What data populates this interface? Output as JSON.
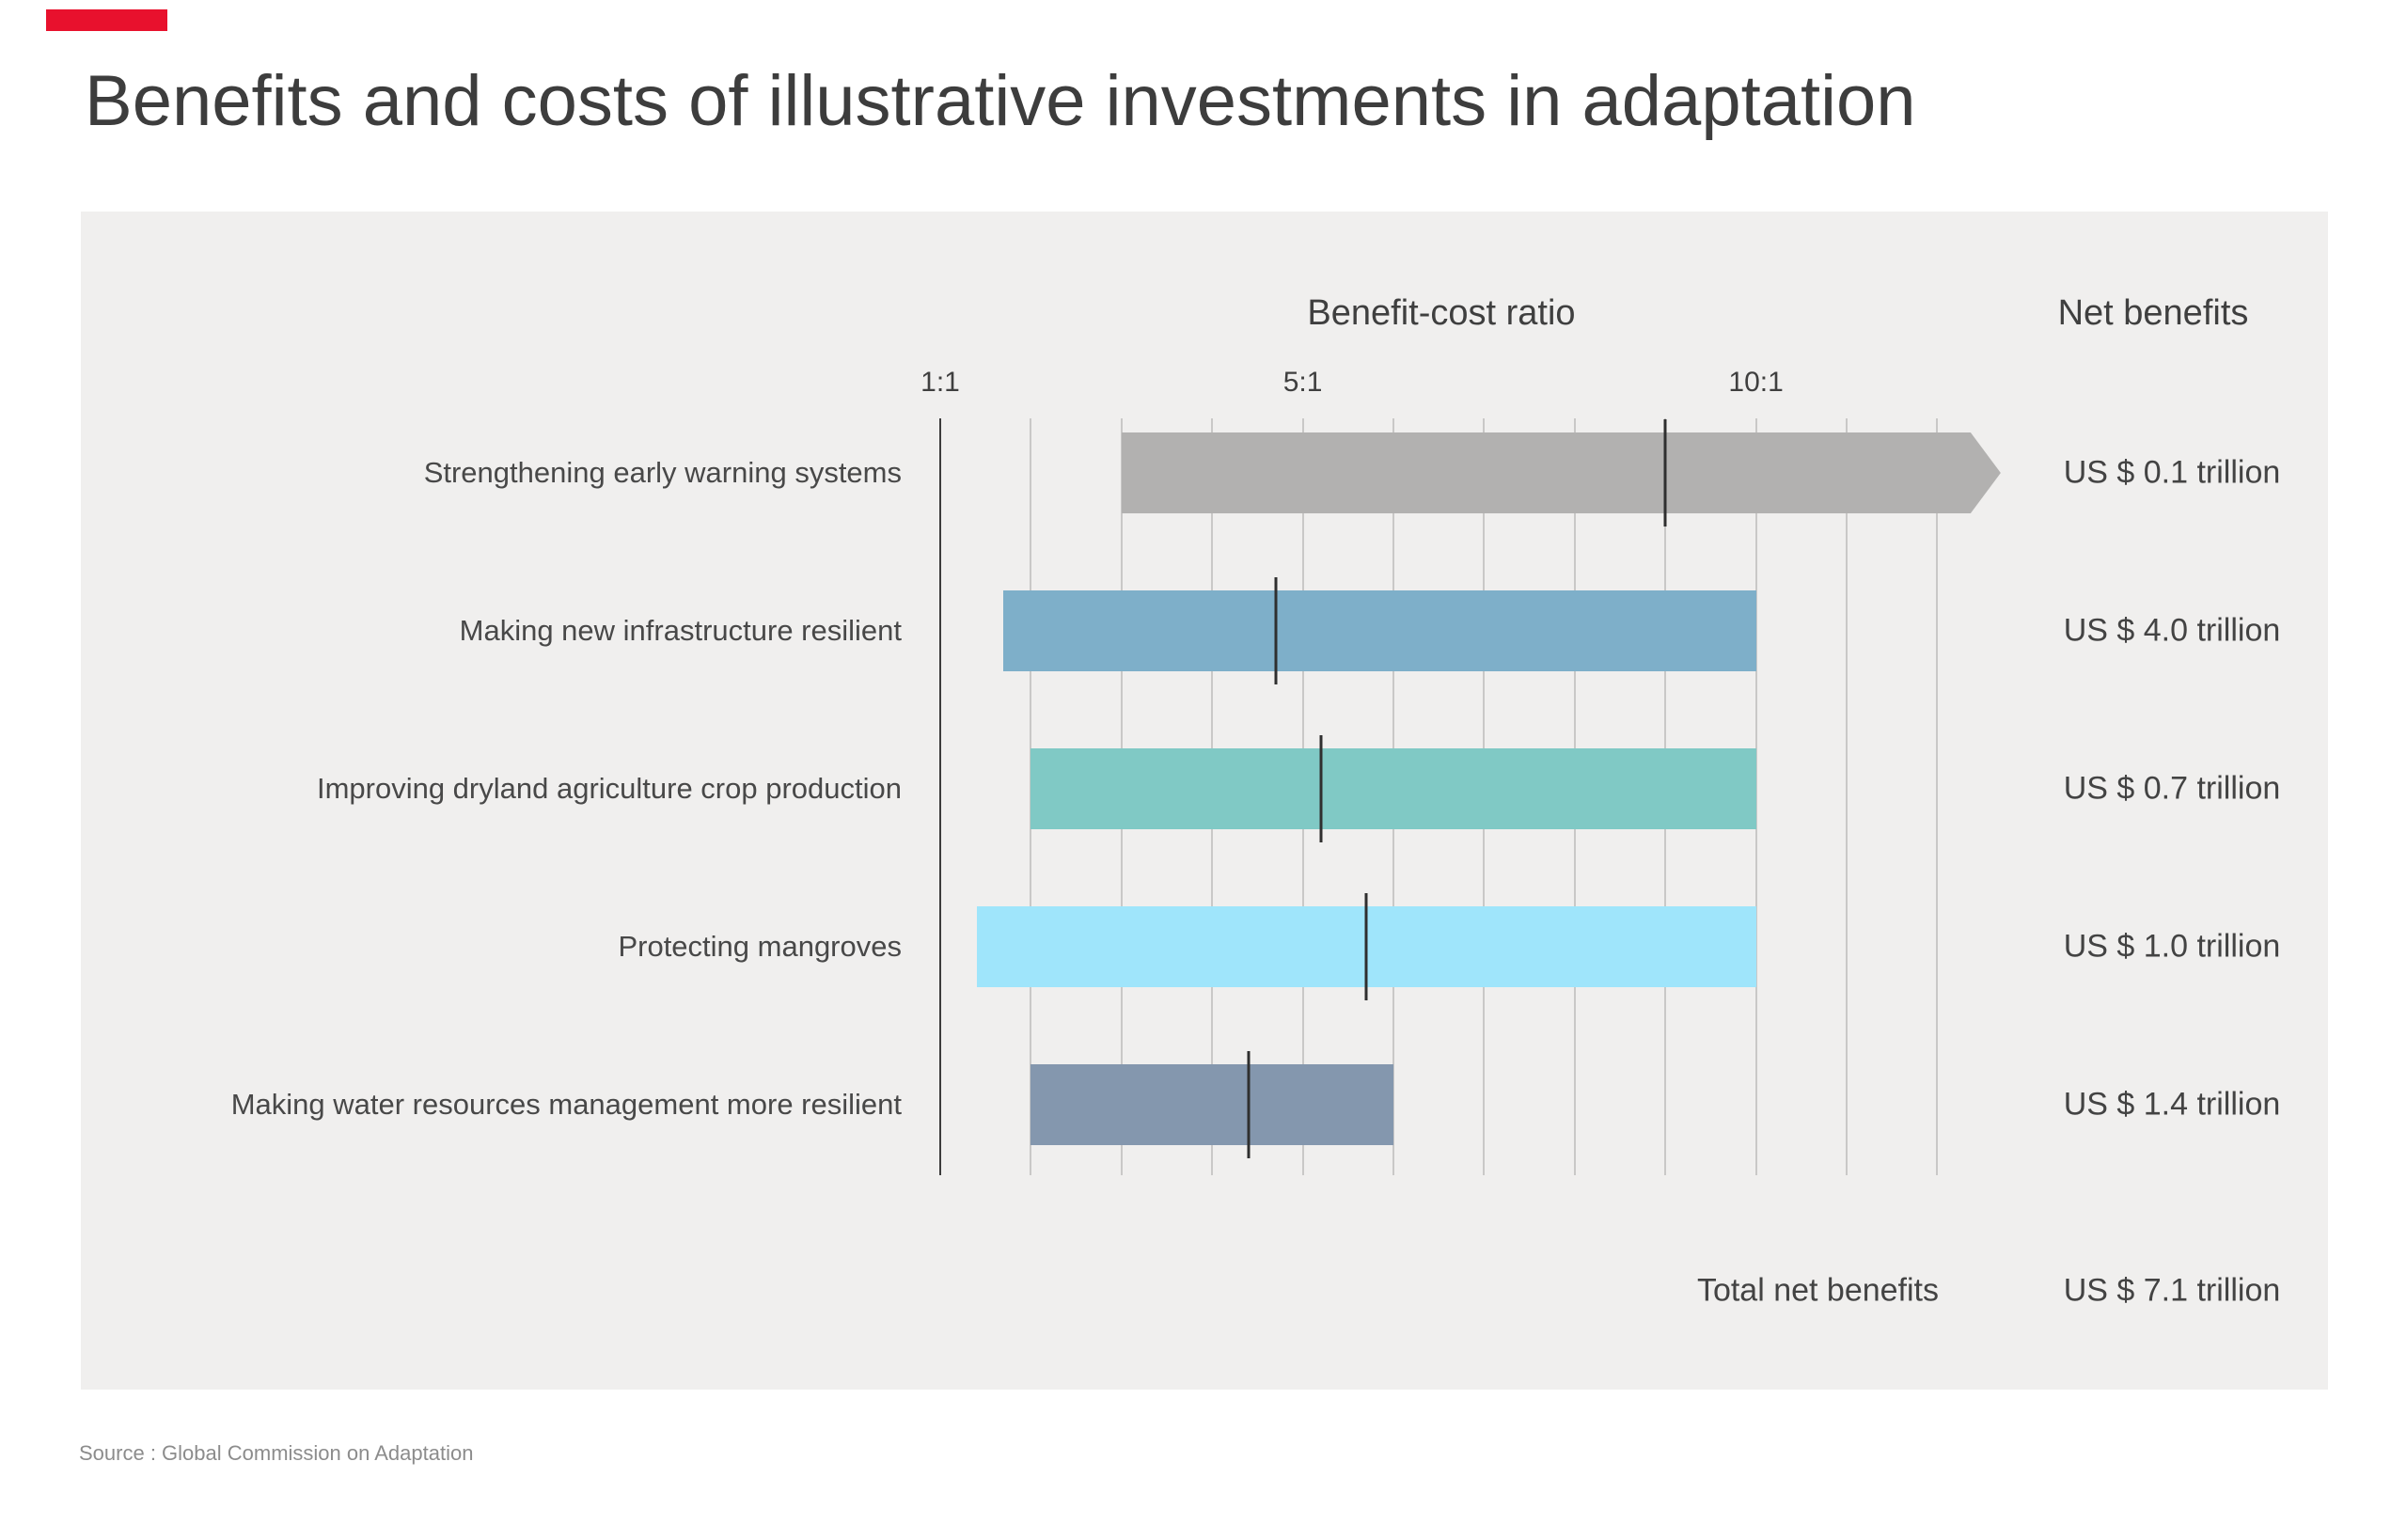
{
  "accent_color": "#e8112d",
  "title": "Benefits and costs of illustrative investments in adaptation",
  "panel_bg": "#f0efee",
  "source": "Source : Global Commission on Adaptation",
  "chart_data": {
    "type": "bar",
    "subtype": "horizontal-range-bars-with-median-markers",
    "bcr_header": "Benefit-cost ratio",
    "net_benefits_header": "Net benefits",
    "axis": {
      "label_format": "ratio",
      "ticks": [
        {
          "label": "1:1",
          "ratio": 1
        },
        {
          "label": "5:1",
          "ratio": 5
        },
        {
          "label": "10:1",
          "ratio": 10
        }
      ],
      "gridline_from_ratio": 1,
      "gridline_to_ratio": 12,
      "grid_on": true
    },
    "rows": [
      {
        "label": "Strengthening early warning systems",
        "bcr_min": 3.0,
        "bcr_max": 12.7,
        "bcr_median": 9.0,
        "open_ended_arrow": true,
        "color": "#b2b1b0",
        "net_benefit": "US $ 0.1 trillion"
      },
      {
        "label": "Making new infrastructure resilient",
        "bcr_min": 1.7,
        "bcr_max": 10.0,
        "bcr_median": 4.7,
        "open_ended_arrow": false,
        "color": "#7eafc9",
        "net_benefit": "US $ 4.0 trillion"
      },
      {
        "label": "Improving dryland agriculture crop production",
        "bcr_min": 2.0,
        "bcr_max": 10.0,
        "bcr_median": 5.2,
        "open_ended_arrow": false,
        "color": "#80c9c5",
        "net_benefit": "US $ 0.7 trillion"
      },
      {
        "label": "Protecting mangroves",
        "bcr_min": 1.4,
        "bcr_max": 10.0,
        "bcr_median": 5.7,
        "open_ended_arrow": false,
        "color": "#9fe5fb",
        "net_benefit": "US $ 1.0 trillion"
      },
      {
        "label": "Making water resources management more resilient",
        "bcr_min": 2.0,
        "bcr_max": 6.0,
        "bcr_median": 4.4,
        "open_ended_arrow": false,
        "color": "#8497ae",
        "net_benefit": "US $ 1.4 trillion"
      }
    ],
    "total": {
      "label": "Total net benefits",
      "value": "US $ 7.1 trillion"
    }
  }
}
